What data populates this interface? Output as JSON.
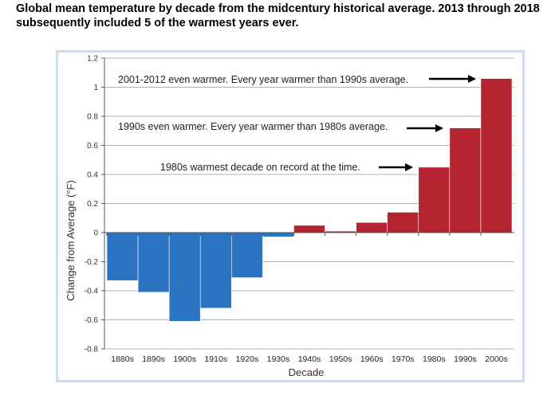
{
  "caption": "Global mean temperature by decade from the midcentury historical average.  2013 through 2018 subsequently included 5 of the warmest years ever.",
  "chart_data": {
    "type": "bar",
    "categories": [
      "1880s",
      "1890s",
      "1900s",
      "1910s",
      "1920s",
      "1930s",
      "1940s",
      "1950s",
      "1960s",
      "1970s",
      "1980s",
      "1990s",
      "2000s"
    ],
    "values": [
      -0.33,
      -0.41,
      -0.61,
      -0.52,
      -0.31,
      -0.03,
      0.05,
      0.01,
      0.07,
      0.14,
      0.45,
      0.72,
      1.06
    ],
    "xlabel": "Decade",
    "ylabel": "Change from Average (°F)",
    "ylim": [
      -0.8,
      1.2
    ],
    "yticks": [
      "1.2",
      "1",
      "0.8",
      "0.6",
      "0.4",
      "0.2",
      "0",
      "-0.2",
      "-0.4",
      "-0.6",
      "-0.8"
    ],
    "grid": true,
    "colors": {
      "negative": "#2b74c1",
      "positive": "#b32430"
    },
    "annotations": [
      {
        "text": "2001-2012 even warmer. Every year warmer than 1990s average.",
        "points_to": "2000s"
      },
      {
        "text": "1990s even warmer. Every year warmer than 1980s average.",
        "points_to": "1990s"
      },
      {
        "text": "1980s warmest decade on record at the time.",
        "points_to": "1980s"
      }
    ]
  }
}
